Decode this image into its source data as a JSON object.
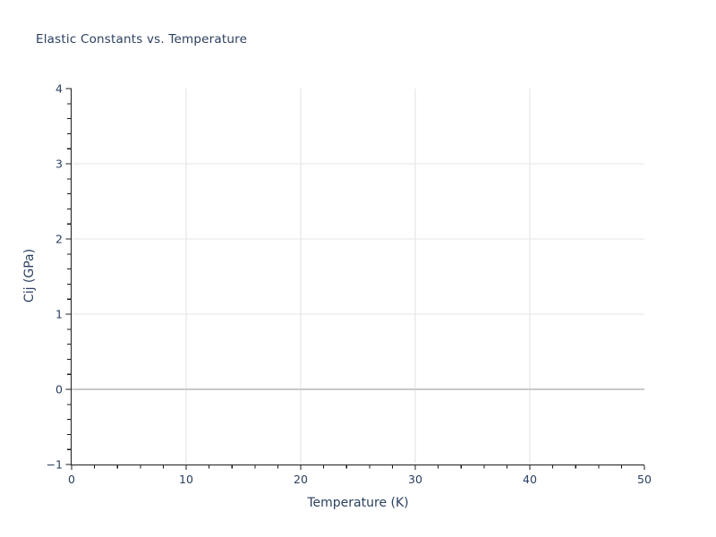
{
  "window": {
    "background": "#ffffff"
  },
  "chart_data": {
    "type": "scatter",
    "title": "Elastic Constants vs. Temperature",
    "xlabel": "Temperature (K)",
    "ylabel": "Cij (GPa)",
    "xlim": [
      0,
      50
    ],
    "ylim": [
      -1,
      4
    ],
    "xticks": [
      0,
      10,
      20,
      30,
      40,
      50
    ],
    "yticks": [
      -1,
      0,
      1,
      2,
      3,
      4
    ],
    "x_minor_step": 2,
    "y_minor_step": 0.2,
    "grid": true,
    "zeroline_y": 0,
    "legend": "none",
    "series": [],
    "colors": {
      "text": "#2a3f5f",
      "axis": "#1c1c1e",
      "grid": "#e9e9e9",
      "zeroline": "#c9c9c9",
      "plot_background": "#ffffff",
      "paper_background": "#ffffff"
    }
  }
}
